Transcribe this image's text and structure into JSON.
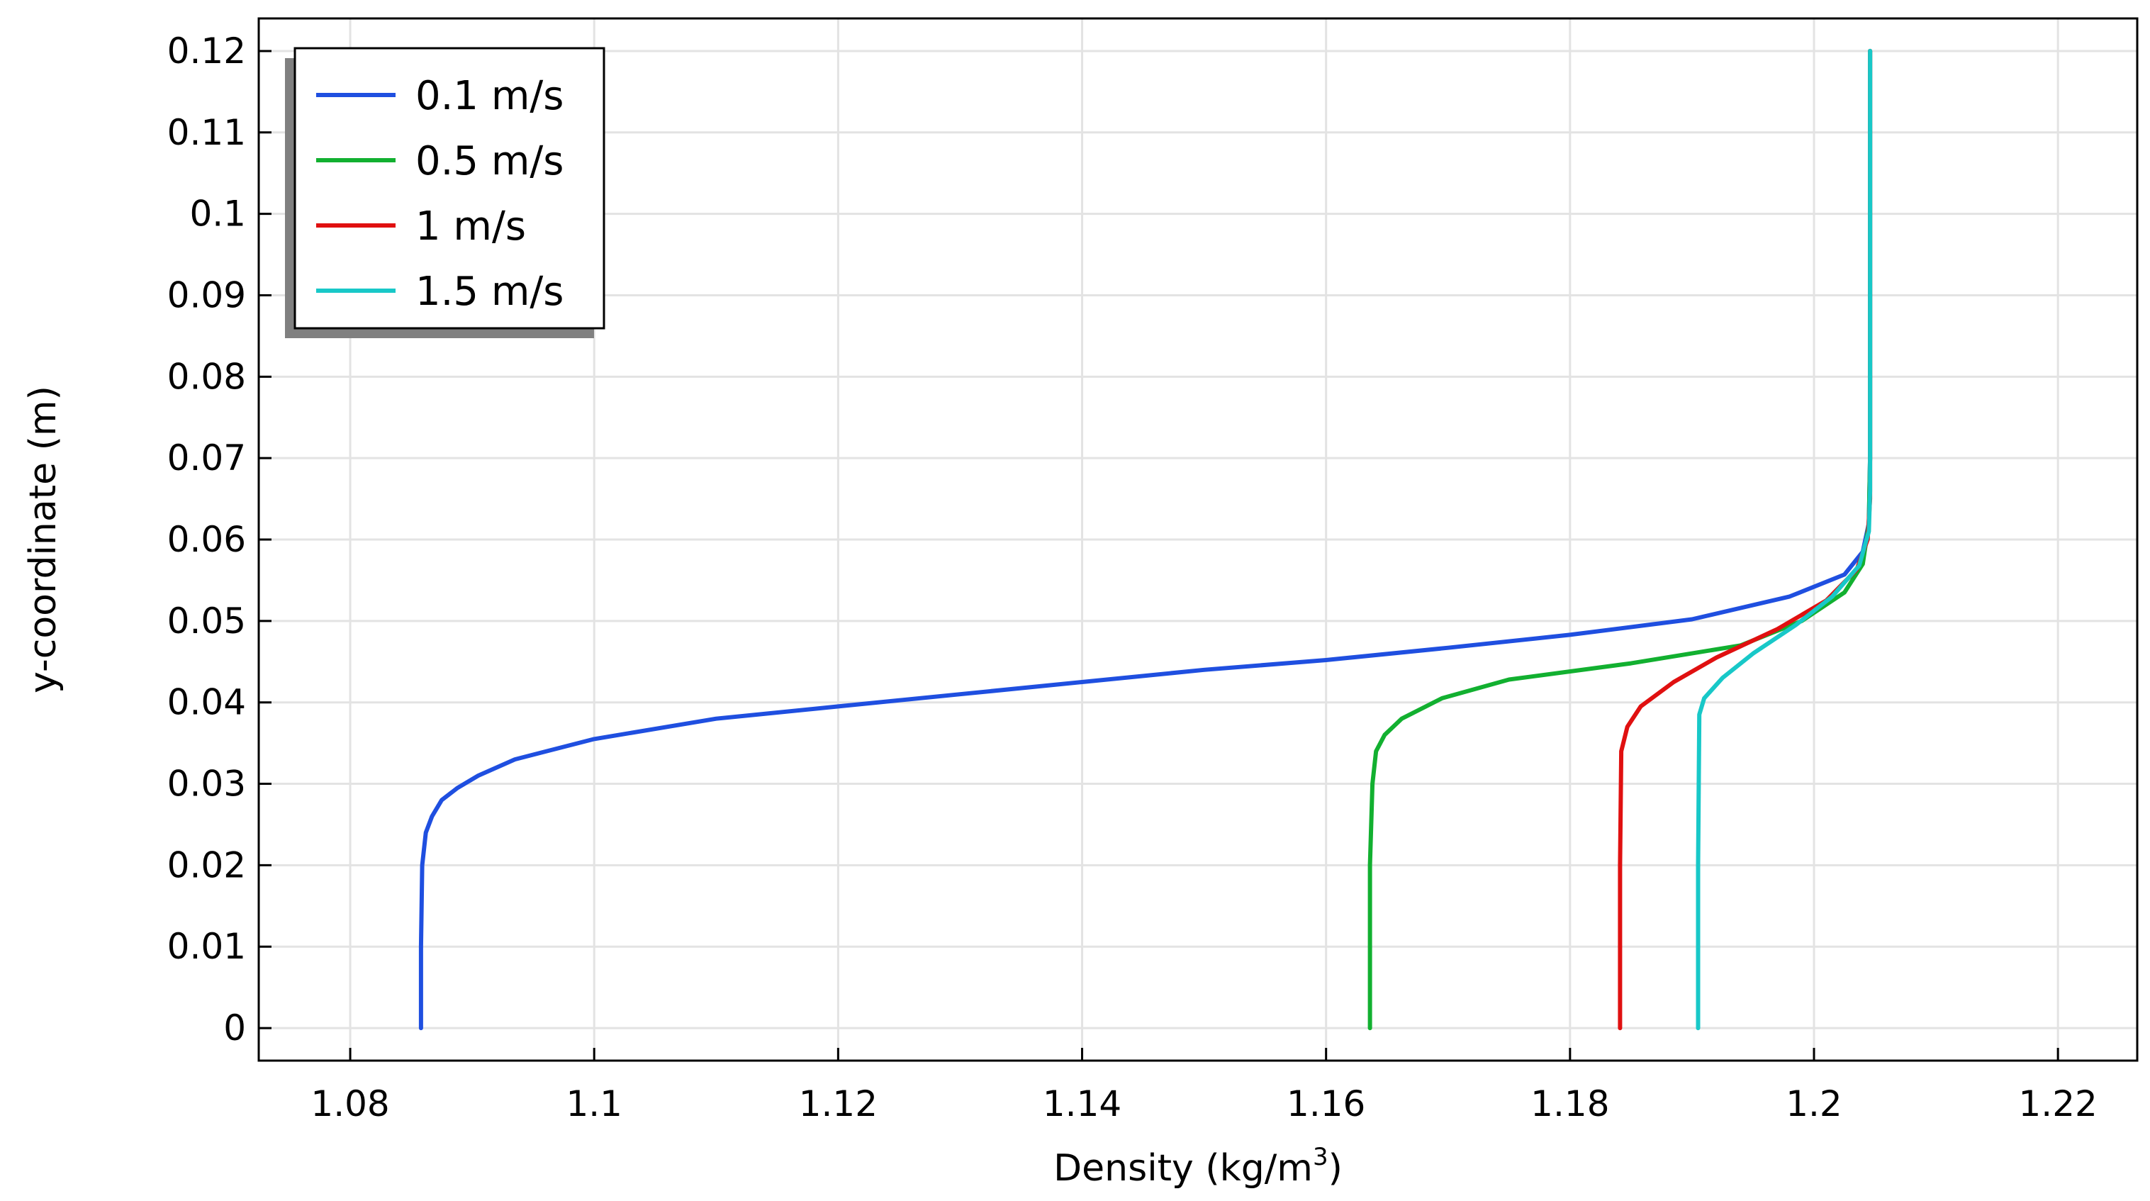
{
  "chart_data": {
    "type": "line",
    "title": "",
    "xlabel": "Density (kg/m",
    "xlabel_sup": "3",
    "xlabel_close": ")",
    "ylabel": "y-coordinate (m)",
    "xlim": [
      1.0725,
      1.2265
    ],
    "ylim": [
      -0.004,
      0.124
    ],
    "xticks": [
      1.08,
      1.1,
      1.12,
      1.14,
      1.16,
      1.18,
      1.2,
      1.22
    ],
    "xtick_labels": [
      "1.08",
      "1.1",
      "1.12",
      "1.14",
      "1.16",
      "1.18",
      "1.2",
      "1.22"
    ],
    "yticks": [
      0,
      0.01,
      0.02,
      0.03,
      0.04,
      0.05,
      0.06,
      0.07,
      0.08,
      0.09,
      0.1,
      0.11,
      0.12
    ],
    "ytick_labels": [
      "0",
      "0.01",
      "0.02",
      "0.03",
      "0.04",
      "0.05",
      "0.06",
      "0.07",
      "0.08",
      "0.09",
      "0.1",
      "0.11",
      "0.12"
    ],
    "grid": true,
    "legend_position": "top-left",
    "series": [
      {
        "name": "0.1 m/s",
        "color": "#1f4fe0",
        "points": [
          [
            1.0858,
            0
          ],
          [
            1.0858,
            0.01
          ],
          [
            1.0859,
            0.02
          ],
          [
            1.0862,
            0.024
          ],
          [
            1.0867,
            0.026
          ],
          [
            1.0875,
            0.028
          ],
          [
            1.0888,
            0.0295
          ],
          [
            1.0905,
            0.031
          ],
          [
            1.0935,
            0.033
          ],
          [
            1.1,
            0.0355
          ],
          [
            1.11,
            0.038
          ],
          [
            1.12,
            0.0395
          ],
          [
            1.13,
            0.041
          ],
          [
            1.14,
            0.0425
          ],
          [
            1.15,
            0.044
          ],
          [
            1.16,
            0.0452
          ],
          [
            1.17,
            0.0467
          ],
          [
            1.18,
            0.0483
          ],
          [
            1.19,
            0.0502
          ],
          [
            1.198,
            0.053
          ],
          [
            1.2025,
            0.0557
          ],
          [
            1.204,
            0.0585
          ],
          [
            1.2045,
            0.062
          ],
          [
            1.2046,
            0.07
          ],
          [
            1.2046,
            0.12
          ]
        ]
      },
      {
        "name": "0.5 m/s",
        "color": "#12b030",
        "points": [
          [
            1.1636,
            0
          ],
          [
            1.1636,
            0.02
          ],
          [
            1.1638,
            0.03
          ],
          [
            1.1641,
            0.034
          ],
          [
            1.1648,
            0.036
          ],
          [
            1.1662,
            0.038
          ],
          [
            1.1695,
            0.0405
          ],
          [
            1.175,
            0.0428
          ],
          [
            1.185,
            0.0448
          ],
          [
            1.194,
            0.047
          ],
          [
            1.199,
            0.05
          ],
          [
            1.2025,
            0.0535
          ],
          [
            1.204,
            0.057
          ],
          [
            1.2045,
            0.062
          ],
          [
            1.2046,
            0.07
          ],
          [
            1.2046,
            0.12
          ]
        ]
      },
      {
        "name": "1 m/s",
        "color": "#e01010",
        "points": [
          [
            1.1841,
            0
          ],
          [
            1.1841,
            0.02
          ],
          [
            1.1842,
            0.034
          ],
          [
            1.1847,
            0.037
          ],
          [
            1.1858,
            0.0395
          ],
          [
            1.1885,
            0.0425
          ],
          [
            1.192,
            0.0455
          ],
          [
            1.197,
            0.049
          ],
          [
            1.201,
            0.0525
          ],
          [
            1.2035,
            0.0563
          ],
          [
            1.2044,
            0.06
          ],
          [
            1.2046,
            0.065
          ],
          [
            1.2046,
            0.12
          ]
        ]
      },
      {
        "name": "1.5 m/s",
        "color": "#18c8c8",
        "points": [
          [
            1.1905,
            0
          ],
          [
            1.1905,
            0.02
          ],
          [
            1.1906,
            0.0385
          ],
          [
            1.191,
            0.0405
          ],
          [
            1.1925,
            0.043
          ],
          [
            1.195,
            0.046
          ],
          [
            1.1985,
            0.0495
          ],
          [
            1.2015,
            0.053
          ],
          [
            1.2037,
            0.0568
          ],
          [
            1.2045,
            0.061
          ],
          [
            1.2046,
            0.066
          ],
          [
            1.2046,
            0.12
          ]
        ]
      }
    ]
  }
}
